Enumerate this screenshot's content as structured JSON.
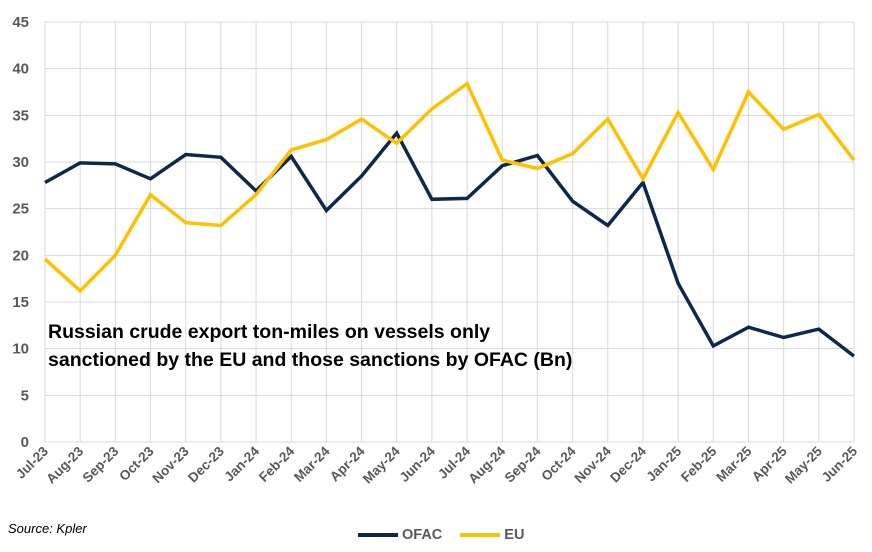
{
  "chart_data": {
    "type": "line",
    "title": "",
    "annotation_line1": "Russian crude export ton-miles on vessels only",
    "annotation_line2": "sanctioned by the EU and those sanctions by OFAC (Bn)",
    "source": "Source: Kpler",
    "categories": [
      "Jul-23",
      "Aug-23",
      "Sep-23",
      "Oct-23",
      "Nov-23",
      "Dec-23",
      "Jan-24",
      "Feb-24",
      "Mar-24",
      "Apr-24",
      "May-24",
      "Jun-24",
      "Jul-24",
      "Aug-24",
      "Sep-24",
      "Oct-24",
      "Nov-24",
      "Dec-24",
      "Jan-25",
      "Feb-25",
      "Mar-25",
      "Apr-25",
      "May-25",
      "Jun-25"
    ],
    "ylim": [
      0,
      45
    ],
    "yticks": [
      "0",
      "5",
      "10",
      "15",
      "20",
      "25",
      "30",
      "35",
      "40",
      "45"
    ],
    "grid": true,
    "legend_position": "bottom",
    "series": [
      {
        "name": "OFAC",
        "color": "#0f2849",
        "values": [
          27.8,
          29.9,
          29.8,
          28.2,
          30.8,
          30.5,
          26.9,
          30.6,
          24.8,
          28.5,
          33.1,
          26.0,
          26.1,
          29.6,
          30.7,
          25.8,
          23.2,
          27.8,
          17.0,
          10.3,
          12.3,
          11.2,
          12.1,
          9.2
        ]
      },
      {
        "name": "EU",
        "color": "#ffc000",
        "values": [
          19.6,
          16.2,
          20.0,
          26.5,
          23.5,
          23.2,
          26.5,
          31.3,
          32.4,
          34.6,
          32.0,
          35.7,
          38.4,
          30.2,
          29.3,
          30.9,
          34.6,
          28.2,
          35.3,
          29.2,
          37.5,
          33.5,
          35.1,
          30.2
        ]
      }
    ]
  }
}
